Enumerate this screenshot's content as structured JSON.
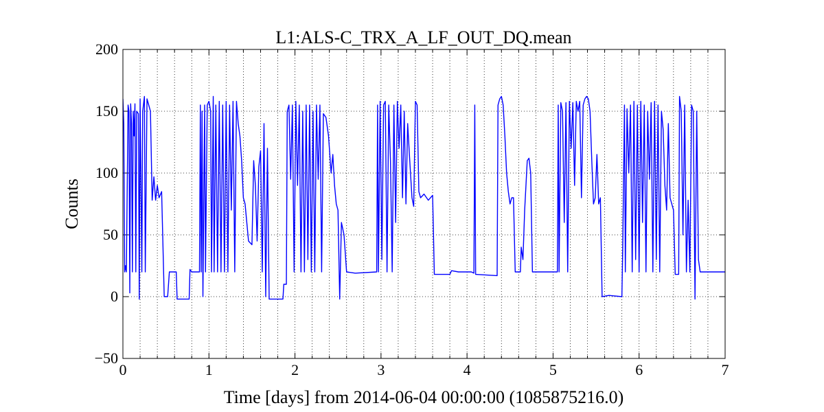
{
  "chart_data": {
    "type": "line",
    "title": "L1:ALS-C_TRX_A_LF_OUT_DQ.mean",
    "xlabel": "Time [days] from 2014-06-04 00:00:00 (1085875216.0)",
    "ylabel": "Counts",
    "color": "#0000ff",
    "grid": true,
    "xlim": [
      0,
      7
    ],
    "ylim": [
      -50,
      200
    ],
    "xticks": [
      0,
      1,
      2,
      3,
      4,
      5,
      6,
      7
    ],
    "x_minor_ticks": [
      0.2,
      0.4,
      0.6,
      0.8,
      1.2,
      1.4,
      1.6,
      1.8,
      2.2,
      2.4,
      2.6,
      2.8,
      3.2,
      3.4,
      3.6,
      3.8,
      4.2,
      4.4,
      4.6,
      4.8,
      5.2,
      5.4,
      5.6,
      5.8,
      6.2,
      6.4,
      6.6,
      6.8
    ],
    "yticks": [
      {
        "value": -50,
        "label": "−50"
      },
      0,
      50,
      100,
      150,
      200
    ],
    "x": [
      0,
      0.01,
      0.02,
      0.03,
      0.04,
      0.06,
      0.07,
      0.08,
      0.09,
      0.1,
      0.11,
      0.12,
      0.13,
      0.14,
      0.15,
      0.16,
      0.18,
      0.19,
      0.2,
      0.22,
      0.23,
      0.25,
      0.26,
      0.28,
      0.3,
      0.32,
      0.34,
      0.36,
      0.38,
      0.4,
      0.42,
      0.45,
      0.48,
      0.52,
      0.54,
      0.62,
      0.63,
      0.77,
      0.78,
      0.8,
      0.89,
      0.9,
      0.91,
      0.92,
      0.93,
      0.95,
      0.96,
      0.98,
      1.0,
      1.02,
      1.03,
      1.05,
      1.06,
      1.08,
      1.1,
      1.12,
      1.14,
      1.16,
      1.18,
      1.2,
      1.22,
      1.24,
      1.26,
      1.28,
      1.3,
      1.32,
      1.34,
      1.36,
      1.38,
      1.4,
      1.42,
      1.44,
      1.46,
      1.5,
      1.52,
      1.54,
      1.56,
      1.58,
      1.6,
      1.62,
      1.64,
      1.66,
      1.68,
      1.7,
      1.86,
      1.87,
      1.9,
      1.91,
      1.93,
      1.95,
      1.97,
      1.99,
      2.01,
      2.03,
      2.05,
      2.07,
      2.09,
      2.11,
      2.13,
      2.15,
      2.17,
      2.19,
      2.21,
      2.23,
      2.25,
      2.27,
      2.29,
      2.31,
      2.33,
      2.36,
      2.39,
      2.42,
      2.44,
      2.46,
      2.48,
      2.5,
      2.52,
      2.54,
      2.57,
      2.6,
      2.7,
      2.95,
      2.96,
      2.97,
      2.99,
      3.01,
      3.03,
      3.05,
      3.07,
      3.09,
      3.11,
      3.13,
      3.15,
      3.17,
      3.19,
      3.21,
      3.23,
      3.25,
      3.27,
      3.29,
      3.31,
      3.33,
      3.36,
      3.38,
      3.4,
      3.42,
      3.44,
      3.46,
      3.5,
      3.55,
      3.6,
      3.62,
      3.8,
      3.82,
      3.9,
      4.05,
      4.08,
      4.09,
      4.1,
      4.35,
      4.36,
      4.38,
      4.4,
      4.42,
      4.44,
      4.46,
      4.48,
      4.5,
      4.52,
      4.54,
      4.56,
      4.62,
      4.63,
      4.65,
      4.67,
      4.7,
      4.72,
      4.74,
      4.76,
      4.95,
      5.05,
      5.06,
      5.07,
      5.09,
      5.11,
      5.13,
      5.15,
      5.17,
      5.19,
      5.21,
      5.23,
      5.25,
      5.27,
      5.29,
      5.31,
      5.33,
      5.35,
      5.37,
      5.39,
      5.41,
      5.43,
      5.45,
      5.47,
      5.49,
      5.51,
      5.53,
      5.55,
      5.57,
      5.65,
      5.8,
      5.81,
      5.83,
      5.84,
      5.86,
      5.88,
      5.9,
      5.92,
      5.94,
      5.96,
      5.98,
      6.0,
      6.02,
      6.04,
      6.06,
      6.08,
      6.1,
      6.12,
      6.14,
      6.16,
      6.18,
      6.2,
      6.22,
      6.24,
      6.26,
      6.28,
      6.3,
      6.32,
      6.34,
      6.36,
      6.38,
      6.4,
      6.42,
      6.46,
      6.47,
      6.49,
      6.51,
      6.53,
      6.55,
      6.57,
      6.59,
      6.61,
      6.63,
      6.65,
      6.67,
      6.69,
      6.71,
      6.8,
      7.0
    ],
    "values": [
      160,
      140,
      20,
      25,
      20,
      155,
      150,
      3,
      156,
      140,
      20,
      150,
      130,
      156,
      20,
      150,
      148,
      -2,
      160,
      20,
      150,
      162,
      20,
      160,
      155,
      150,
      78,
      97,
      78,
      90,
      80,
      85,
      0,
      0,
      20,
      20,
      -2,
      -2,
      22,
      20,
      20,
      155,
      20,
      150,
      0,
      155,
      20,
      155,
      158,
      150,
      20,
      162,
      20,
      155,
      20,
      158,
      20,
      155,
      20,
      158,
      20,
      155,
      70,
      158,
      20,
      158,
      140,
      130,
      110,
      80,
      75,
      60,
      45,
      42,
      110,
      90,
      45,
      105,
      118,
      20,
      140,
      0,
      120,
      -2,
      -2,
      10,
      10,
      150,
      155,
      95,
      155,
      20,
      158,
      90,
      155,
      20,
      150,
      20,
      155,
      30,
      155,
      20,
      150,
      20,
      155,
      95,
      155,
      20,
      148,
      145,
      130,
      100,
      115,
      90,
      75,
      70,
      -2,
      60,
      50,
      20,
      19,
      20,
      155,
      20,
      158,
      30,
      155,
      158,
      20,
      155,
      110,
      20,
      155,
      60,
      158,
      120,
      155,
      80,
      150,
      75,
      140,
      115,
      80,
      73,
      158,
      155,
      85,
      80,
      83,
      78,
      82,
      18,
      18,
      21,
      20,
      20,
      19,
      155,
      18,
      17,
      155,
      160,
      162,
      155,
      130,
      100,
      85,
      75,
      80,
      80,
      20,
      20,
      40,
      30,
      70,
      110,
      112,
      100,
      20,
      20,
      20,
      155,
      20,
      157,
      150,
      60,
      157,
      20,
      158,
      120,
      157,
      90,
      158,
      150,
      158,
      80,
      155,
      160,
      162,
      160,
      150,
      110,
      75,
      80,
      115,
      75,
      80,
      0,
      1,
      0,
      40,
      155,
      20,
      152,
      100,
      155,
      20,
      158,
      30,
      155,
      20,
      158,
      60,
      155,
      20,
      150,
      95,
      157,
      20,
      158,
      30,
      155,
      20,
      150,
      135,
      90,
      70,
      140,
      80,
      75,
      70,
      18,
      18,
      162,
      150,
      50,
      155,
      20,
      78,
      20,
      155,
      150,
      -2,
      150,
      30,
      20,
      20,
      20
    ]
  }
}
